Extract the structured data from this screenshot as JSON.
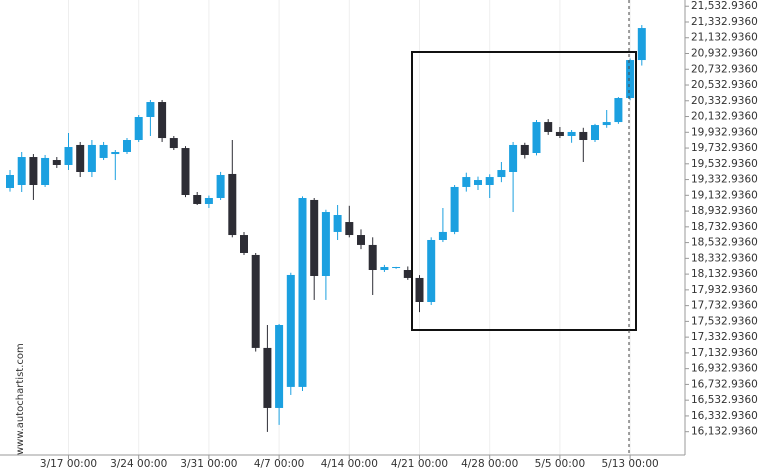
{
  "chart_data": {
    "type": "candlestick",
    "watermark": "www.autochartist.com",
    "up_color": "#1ba0e0",
    "down_color": "#2d2d35",
    "grid": "x",
    "categories": [
      null,
      null,
      null,
      null,
      null,
      "3/17 00:00",
      null,
      null,
      null,
      null,
      null,
      "3/24 00:00",
      null,
      null,
      null,
      null,
      null,
      "3/31 00:00",
      null,
      null,
      null,
      null,
      null,
      "4/7 00:00",
      null,
      null,
      null,
      null,
      null,
      "4/14 00:00",
      null,
      null,
      null,
      null,
      null,
      "4/21 00:00",
      null,
      null,
      null,
      null,
      null,
      "4/28 00:00",
      null,
      null,
      null,
      null,
      null,
      "5/5 00:00",
      null,
      null,
      null,
      null,
      null,
      "5/13 00:00",
      null
    ],
    "open": [
      19226,
      19264,
      19619,
      19264,
      19581,
      19518,
      19772,
      19429,
      19607,
      19657,
      19683,
      19835,
      20127,
      20317,
      19860,
      19733,
      19137,
      19023,
      19099,
      19404,
      18629,
      18376,
      17196,
      16434,
      16701,
      16701,
      19074,
      18109,
      18668,
      18794,
      18629,
      18503,
      18185,
      18211,
      18185,
      18084,
      17779,
      18566,
      18668,
      19239,
      19264,
      19264,
      19365,
      19429,
      19772,
      19670,
      20063,
      19937,
      19886,
      19937,
      19835,
      20025,
      20063,
      20368,
      20850
    ],
    "high": [
      19454,
      19683,
      19657,
      19645,
      19619,
      19924,
      19810,
      19835,
      19810,
      19708,
      19860,
      20152,
      20343,
      20343,
      19886,
      19757,
      19175,
      19130,
      19430,
      19835,
      18668,
      18401,
      17487,
      17500,
      18150,
      19120,
      19099,
      18950,
      19010,
      19000,
      18700,
      18600,
      18250,
      18225,
      18230,
      18120,
      18600,
      18972,
      19264,
      19420,
      19370,
      19400,
      19556,
      19810,
      19800,
      20089,
      20100,
      20000,
      19962,
      19990,
      20040,
      20216,
      20380,
      20870,
      21294
    ],
    "low": [
      19180,
      19175,
      19074,
      19239,
      19480,
      19454,
      19365,
      19365,
      19581,
      19327,
      19657,
      19810,
      19886,
      19810,
      19708,
      19110,
      19010,
      18972,
      19074,
      18600,
      18376,
      17150,
      16130,
      16219,
      16599,
      16650,
      17805,
      17805,
      18566,
      18600,
      18450,
      17868,
      18160,
      18200,
      18060,
      17650,
      17741,
      18540,
      18640,
      19180,
      19200,
      19099,
      19300,
      18921,
      19600,
      19640,
      19900,
      19860,
      19800,
      19556,
      19810,
      19990,
      20040,
      20340,
      20780
    ],
    "close": [
      19391,
      19619,
      19264,
      19607,
      19518,
      19746,
      19429,
      19772,
      19772,
      19683,
      19835,
      20127,
      20317,
      19860,
      19733,
      19137,
      19023,
      19099,
      19391,
      18629,
      18401,
      17196,
      16434,
      17487,
      18122,
      19099,
      18109,
      18921,
      18883,
      18629,
      18503,
      18185,
      18223,
      18223,
      18084,
      17779,
      18566,
      18668,
      19239,
      19365,
      19327,
      19365,
      19454,
      19772,
      19645,
      20063,
      19937,
      19886,
      19937,
      19835,
      20025,
      20063,
      20368,
      20850,
      21256
    ],
    "ylim": [
      15837,
      21612
    ],
    "yticks": [
      {
        "value": 16132.936,
        "label": "16,132.9360"
      },
      {
        "value": 16332.936,
        "label": "16,332.9360"
      },
      {
        "value": 16532.936,
        "label": "16,532.9360"
      },
      {
        "value": 16732.936,
        "label": "16,732.9360"
      },
      {
        "value": 16932.936,
        "label": "16,932.9360"
      },
      {
        "value": 17132.936,
        "label": "17,132.9360"
      },
      {
        "value": 17332.936,
        "label": "17,332.9360"
      },
      {
        "value": 17532.936,
        "label": "17,532.9360"
      },
      {
        "value": 17732.936,
        "label": "17,732.9360"
      },
      {
        "value": 17932.936,
        "label": "17,932.9360"
      },
      {
        "value": 18132.936,
        "label": "18,132.9360"
      },
      {
        "value": 18332.936,
        "label": "18,332.9360"
      },
      {
        "value": 18532.936,
        "label": "18,532.9360"
      },
      {
        "value": 18732.936,
        "label": "18,732.9360"
      },
      {
        "value": 18932.936,
        "label": "18,932.9360"
      },
      {
        "value": 19132.936,
        "label": "19,132.9360"
      },
      {
        "value": 19332.936,
        "label": "19,332.9360"
      },
      {
        "value": 19532.936,
        "label": "19,532.9360"
      },
      {
        "value": 19732.936,
        "label": "19,732.9360"
      },
      {
        "value": 19932.936,
        "label": "19,932.9360"
      },
      {
        "value": 20132.936,
        "label": "20,132.9360"
      },
      {
        "value": 20332.936,
        "label": "20,332.9360"
      },
      {
        "value": 20532.936,
        "label": "20,532.9360"
      },
      {
        "value": 20732.936,
        "label": "20,732.9360"
      },
      {
        "value": 20932.936,
        "label": "20,932.9360"
      },
      {
        "value": 21132.936,
        "label": "21,132.9360"
      },
      {
        "value": 21332.936,
        "label": "21,332.9360"
      },
      {
        "value": 21532.936,
        "label": "21,532.9360"
      }
    ]
  }
}
